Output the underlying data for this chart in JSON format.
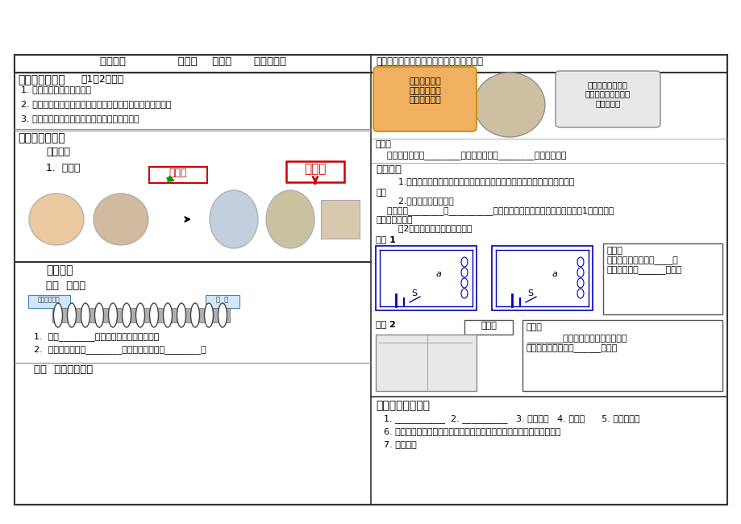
{
  "page_bg": "#ffffff",
  "border_color": "#333333",
  "line_color": "#888888",
  "title_header": "第二十章              第三节    电磁铁      电磁继电器",
  "section1_title_bold": "一、学习目标：",
  "section1_title_normal": "（1－2分钟）",
  "section1_items": [
    "1. 知道电磁铁的定义及原理",
    "2. 知道磁铁有什么优点和影响电磁铁磁性强弱的因素有哪些。",
    "3. 知道电磁铁的应用和电磁继电器的工作原理。"
  ],
  "section2_title": "二、学习内容：",
  "subsection_ketang_pre": "课前导学",
  "item1": "1.  电磁铁",
  "yongci_label": "永磁铁",
  "dianci_label": "电磁铁",
  "ketang_title": "课堂导学",
  "ketang_sub1": "一、  电磁铁",
  "xianquan_label": "线圈（铁芯）",
  "tiexi_label": "铁  芯",
  "ketang_q1": "1.  插入________的通电螺线管称为电磁铁。",
  "ketang_q2": "2.  有电流通过时有________，没有电流时失去________。",
  "ketang_sub2": "二、  电磁铁的磁性",
  "right_title": "问题：电磁铁磁性大小跟哪些因素有关呢？",
  "bubble_left_text": "应用电流磁效\n应，应该与电\n流大小有关。",
  "bubble_right_text": "线圈是主要部件，\n应该与线圈的形状、\n匝数有关。",
  "guess_label": "猜想：",
  "guess_text": "    磁性强弱可能与________的大小、线圈的________和形状有关。",
  "design_title": "设计实验",
  "design_text1": "        1.对于外形相同的螺线管，电磁铁磁性的强弱跟线圈的匝数会有什么样的关",
  "design_text2": "系？",
  "design_text3": "        2.判断磁性强弱方法：",
  "design_text4": "    根据吸引________、__________等的多少来判断螺线管的磁性强弱。（1）改变电路",
  "design_text5": "中的电流大小；",
  "design_text6": "        （2）改换不同匝数的螺线管。",
  "yanshi1": "演示 1",
  "yanshi2": "演示 2",
  "xianxiang": "象现：",
  "conclusion1_title": "结论：",
  "conclusion1_text": "匝数一定时，通入的____越\n大，电磁铁的______越强。",
  "conclusion2_title": "结论：",
  "conclusion2_text": "________一定时，外形相同的螺线管\n匝数越多，电磁铁的______越强。",
  "section3_title": "三、电磁铁的应用",
  "app_line1": "1. ___________  2. __________   3. 电磁阀门   4. 电磁锁      5. 电磁选矿机",
  "app_line2": "6. 磁悬浮列车（磁悬浮列车所用的磁体大多是通有强大电流的电磁铁。）",
  "app_line3": "7. 大型吊车",
  "red_color": "#cc0000",
  "green_color": "#009900",
  "blue_color": "#0000bb",
  "orange_bg": "#f0b060",
  "bubble_right_bg": "#e8e8e8"
}
